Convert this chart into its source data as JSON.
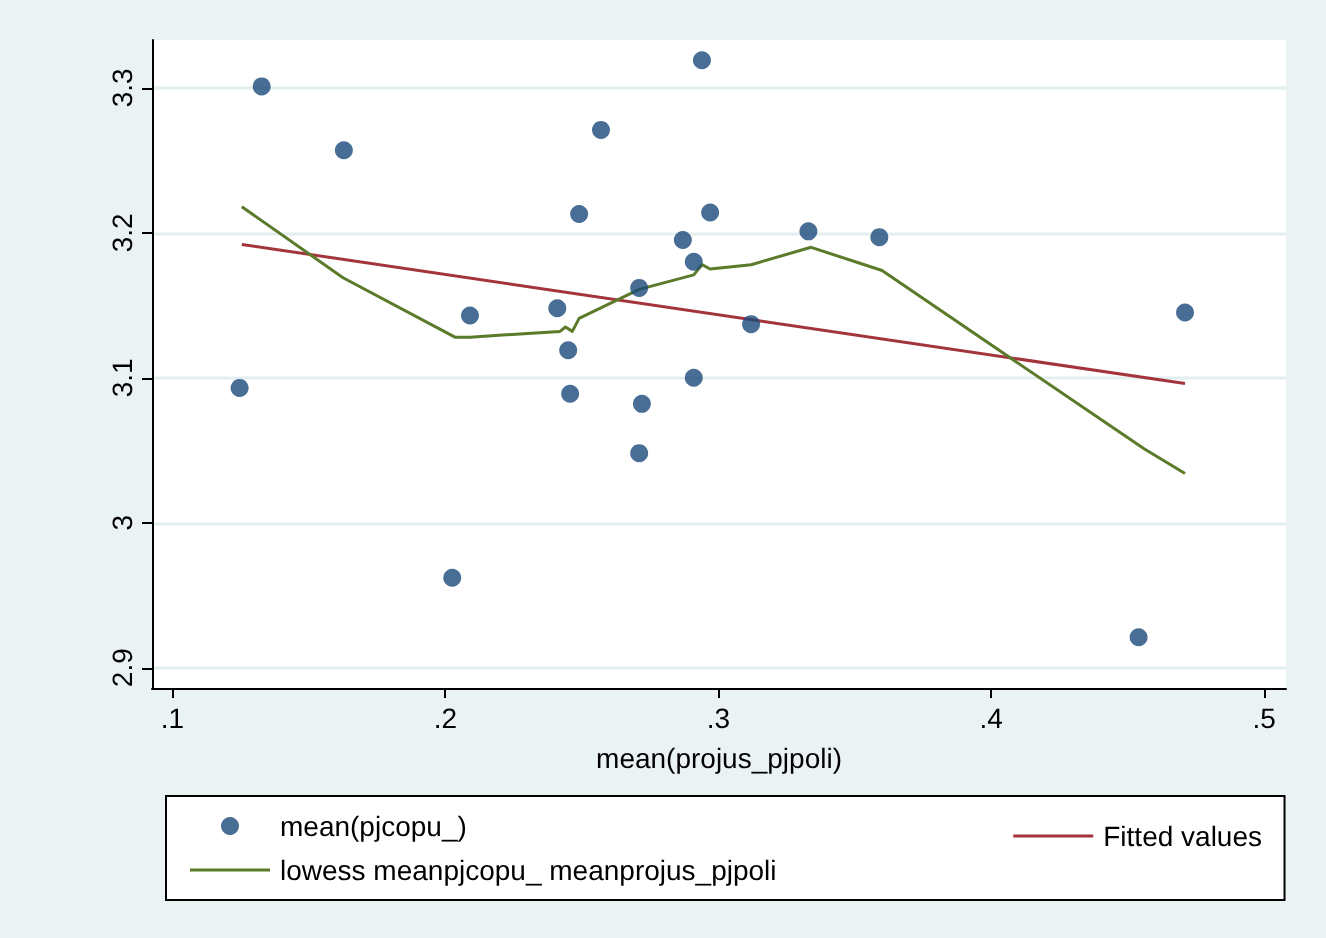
{
  "chart_data": {
    "type": "scatter",
    "xlabel": "mean(projus_pjpoli)",
    "xlim": [
      0.0925,
      0.508
    ],
    "xticks": [
      {
        "value": 0.1,
        "label": ".1"
      },
      {
        "value": 0.2,
        "label": ".2"
      },
      {
        "value": 0.3,
        "label": ".3"
      },
      {
        "value": 0.4,
        "label": ".4"
      },
      {
        "value": 0.5,
        "label": ".5"
      }
    ],
    "ylim": [
      2.886,
      3.333
    ],
    "yticks": [
      2.9,
      3,
      3.1,
      3.2,
      3.3
    ],
    "grid": "y",
    "legend": "bottom",
    "series": [
      {
        "name": "mean(pjcopu_)",
        "marker": "circle",
        "color": "#1a4a7a",
        "x": [
          0.1246,
          0.1327,
          0.1628,
          0.2025,
          0.209,
          0.241,
          0.245,
          0.2457,
          0.249,
          0.257,
          0.271,
          0.271,
          0.272,
          0.287,
          0.291,
          0.291,
          0.294,
          0.297,
          0.312,
          0.333,
          0.359,
          0.454,
          0.471
        ],
        "values": [
          3.093,
          3.301,
          3.257,
          2.962,
          3.143,
          3.148,
          3.119,
          3.089,
          3.213,
          3.271,
          3.162,
          3.048,
          3.082,
          3.195,
          3.18,
          3.1,
          3.319,
          3.214,
          3.137,
          3.201,
          3.197,
          2.921,
          3.145
        ]
      },
      {
        "name": "Fitted values",
        "type": "line",
        "marker": "none",
        "color": "#a3343c",
        "x": [
          0.1254,
          0.471
        ],
        "values": [
          3.192,
          3.096
        ]
      },
      {
        "name": "lowess meanpjcopu_ meanprojus_pjpoli",
        "type": "line",
        "marker": "none",
        "color": "#5b7a2a",
        "x": [
          0.1254,
          0.1625,
          0.2035,
          0.209,
          0.242,
          0.244,
          0.2465,
          0.249,
          0.271,
          0.291,
          0.294,
          0.297,
          0.312,
          0.334,
          0.36,
          0.406,
          0.456,
          0.471
        ],
        "values": [
          3.218,
          3.169,
          3.128,
          3.128,
          3.132,
          3.135,
          3.132,
          3.141,
          3.161,
          3.171,
          3.178,
          3.175,
          3.178,
          3.19,
          3.174,
          3.115,
          3.051,
          3.034
        ]
      }
    ]
  }
}
